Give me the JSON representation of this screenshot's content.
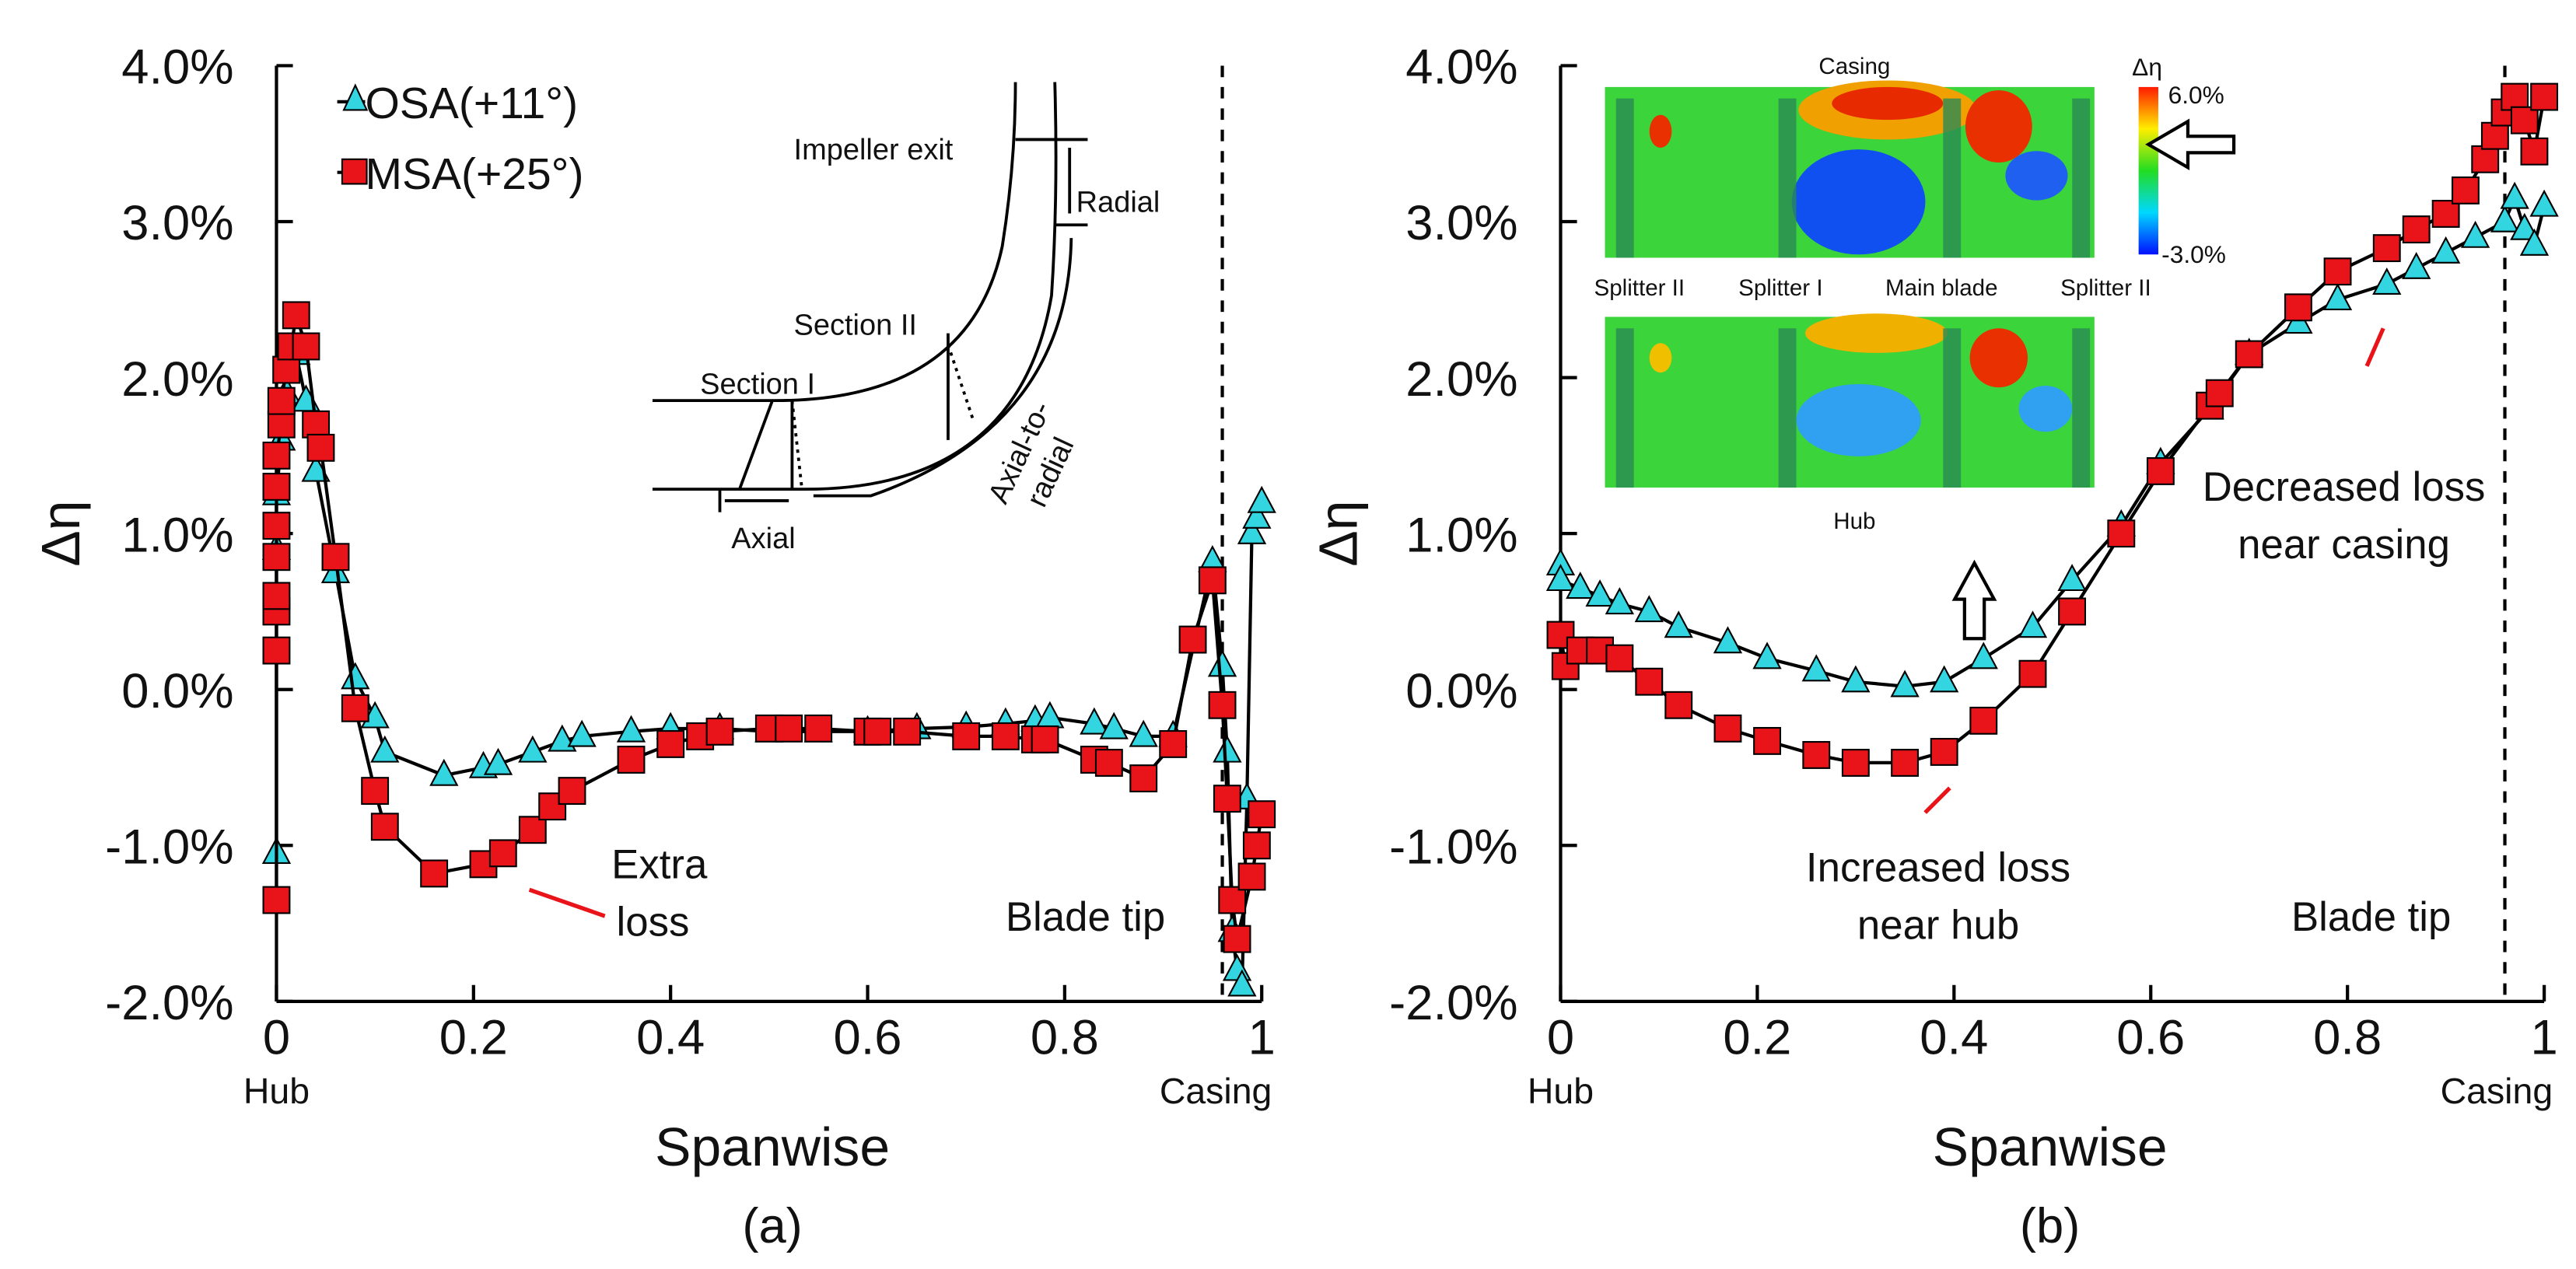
{
  "chart_data": [
    {
      "type": "line",
      "panel_label": "(a)",
      "xlabel": "Spanwise",
      "ylabel": "Δη",
      "xlim": [
        0,
        1
      ],
      "ylim": [
        -2.0,
        4.0
      ],
      "xticks": [
        "0",
        "0.2",
        "0.4",
        "0.6",
        "0.8",
        "1"
      ],
      "yticks": [
        "-2.0%",
        "-1.0%",
        "0.0%",
        "1.0%",
        "2.0%",
        "3.0%",
        "4.0%"
      ],
      "x_end_labels": {
        "hub": "Hub",
        "casing": "Casing"
      },
      "blade_tip": {
        "x": 0.96,
        "label": "Blade tip"
      },
      "legend": {
        "placement": "top-left",
        "entries": [
          "OSA(+11°)",
          "MSA(+25°)"
        ]
      },
      "annotations": {
        "extra_loss": [
          "Extra",
          "loss"
        ]
      },
      "inset_labels": {
        "impeller_exit": "Impeller exit",
        "radial": "Radial",
        "section2": "Section II",
        "section1": "Section I",
        "axial_to_radial": [
          "Axial-to-",
          "radial"
        ],
        "axial": "Axial"
      },
      "series": [
        {
          "name": "OSA(+11°)",
          "marker": "triangle",
          "color": "#33d6e0",
          "x": [
            0,
            0,
            0,
            0.005,
            0.01,
            0.02,
            0.03,
            0.04,
            0.06,
            0.08,
            0.1,
            0.11,
            0.17,
            0.21,
            0.225,
            0.26,
            0.29,
            0.31,
            0.36,
            0.4,
            0.45,
            0.5,
            0.55,
            0.6,
            0.65,
            0.7,
            0.74,
            0.77,
            0.785,
            0.83,
            0.85,
            0.88,
            0.91,
            0.95,
            0.96,
            0.965,
            0.97,
            0.975,
            0.98,
            0.985,
            0.99,
            0.995,
            1.0
          ],
          "y": [
            -1.05,
            0.9,
            1.25,
            1.6,
            1.9,
            2.15,
            1.85,
            1.4,
            0.75,
            0.07,
            -0.18,
            -0.4,
            -0.55,
            -0.5,
            -0.48,
            -0.4,
            -0.33,
            -0.3,
            -0.27,
            -0.25,
            -0.25,
            -0.27,
            -0.27,
            -0.27,
            -0.25,
            -0.24,
            -0.22,
            -0.2,
            -0.18,
            -0.22,
            -0.25,
            -0.3,
            -0.3,
            0.82,
            0.15,
            -0.4,
            -1.55,
            -1.8,
            -1.9,
            -0.7,
            1.0,
            1.1,
            1.2
          ]
        },
        {
          "name": "MSA(+25°)",
          "marker": "square",
          "color": "#e8141a",
          "x": [
            0,
            0,
            0,
            0,
            0,
            0,
            0,
            0,
            0.005,
            0.005,
            0.01,
            0.015,
            0.02,
            0.03,
            0.04,
            0.045,
            0.06,
            0.08,
            0.1,
            0.11,
            0.16,
            0.21,
            0.23,
            0.26,
            0.28,
            0.3,
            0.36,
            0.4,
            0.43,
            0.45,
            0.5,
            0.52,
            0.55,
            0.6,
            0.61,
            0.64,
            0.7,
            0.74,
            0.77,
            0.78,
            0.83,
            0.845,
            0.88,
            0.91,
            0.93,
            0.95,
            0.96,
            0.965,
            0.97,
            0.975,
            0.99,
            0.995,
            1.0
          ],
          "y": [
            -1.35,
            0.25,
            0.5,
            0.6,
            0.85,
            1.05,
            1.3,
            1.5,
            1.7,
            1.85,
            2.05,
            2.2,
            2.4,
            2.2,
            1.7,
            1.55,
            0.85,
            -0.12,
            -0.65,
            -0.88,
            -1.18,
            -1.12,
            -1.05,
            -0.9,
            -0.75,
            -0.65,
            -0.45,
            -0.35,
            -0.3,
            -0.27,
            -0.25,
            -0.25,
            -0.25,
            -0.27,
            -0.27,
            -0.27,
            -0.3,
            -0.3,
            -0.32,
            -0.32,
            -0.45,
            -0.47,
            -0.57,
            -0.35,
            0.32,
            0.7,
            -0.1,
            -0.7,
            -1.35,
            -1.6,
            -1.2,
            -1.0,
            -0.8
          ]
        }
      ]
    },
    {
      "type": "line",
      "panel_label": "(b)",
      "xlabel": "Spanwise",
      "ylabel": "Δη",
      "xlim": [
        0,
        1
      ],
      "ylim": [
        -2.0,
        4.0
      ],
      "xticks": [
        "0",
        "0.2",
        "0.4",
        "0.6",
        "0.8",
        "1"
      ],
      "yticks": [
        "-2.0%",
        "-1.0%",
        "0.0%",
        "1.0%",
        "2.0%",
        "3.0%",
        "4.0%"
      ],
      "x_end_labels": {
        "hub": "Hub",
        "casing": "Casing"
      },
      "blade_tip": {
        "x": 0.96,
        "label": "Blade tip"
      },
      "annotations": {
        "increased_loss": [
          "Increased loss",
          "near hub"
        ],
        "decreased_loss": [
          "Decreased loss",
          "near casing"
        ]
      },
      "inset_labels": {
        "casing": "Casing",
        "hub": "Hub",
        "blades": [
          "Splitter II",
          "Splitter I",
          "Main blade",
          "Splitter II"
        ],
        "colorbar_title": "Δη",
        "colorbar_max": "6.0%",
        "colorbar_min": "-3.0%"
      },
      "series": [
        {
          "name": "OSA(+11°)",
          "marker": "triangle",
          "color": "#33d6e0",
          "x": [
            0,
            0,
            0.02,
            0.04,
            0.06,
            0.09,
            0.12,
            0.17,
            0.21,
            0.26,
            0.3,
            0.35,
            0.39,
            0.43,
            0.48,
            0.52,
            0.57,
            0.61,
            0.66,
            0.7,
            0.75,
            0.79,
            0.84,
            0.87,
            0.9,
            0.93,
            0.96,
            0.97,
            0.98,
            0.99,
            1.0
          ],
          "y": [
            0.8,
            0.7,
            0.65,
            0.6,
            0.55,
            0.5,
            0.4,
            0.3,
            0.2,
            0.12,
            0.05,
            0.02,
            0.05,
            0.2,
            0.4,
            0.7,
            1.05,
            1.45,
            1.8,
            2.15,
            2.35,
            2.5,
            2.6,
            2.7,
            2.8,
            2.9,
            3.0,
            3.15,
            2.95,
            2.85,
            3.1
          ]
        },
        {
          "name": "MSA(+25°)",
          "marker": "square",
          "color": "#e8141a",
          "x": [
            0,
            0.005,
            0.02,
            0.04,
            0.06,
            0.09,
            0.12,
            0.17,
            0.21,
            0.26,
            0.3,
            0.35,
            0.39,
            0.43,
            0.48,
            0.52,
            0.57,
            0.61,
            0.66,
            0.67,
            0.7,
            0.75,
            0.79,
            0.84,
            0.87,
            0.9,
            0.92,
            0.94,
            0.95,
            0.96,
            0.97,
            0.98,
            0.99,
            1.0
          ],
          "y": [
            0.35,
            0.15,
            0.25,
            0.25,
            0.2,
            0.05,
            -0.1,
            -0.25,
            -0.33,
            -0.42,
            -0.47,
            -0.47,
            -0.4,
            -0.2,
            0.1,
            0.5,
            1.0,
            1.4,
            1.82,
            1.9,
            2.15,
            2.45,
            2.68,
            2.83,
            2.95,
            3.05,
            3.2,
            3.4,
            3.55,
            3.7,
            3.8,
            3.65,
            3.45,
            3.8
          ]
        }
      ]
    }
  ]
}
